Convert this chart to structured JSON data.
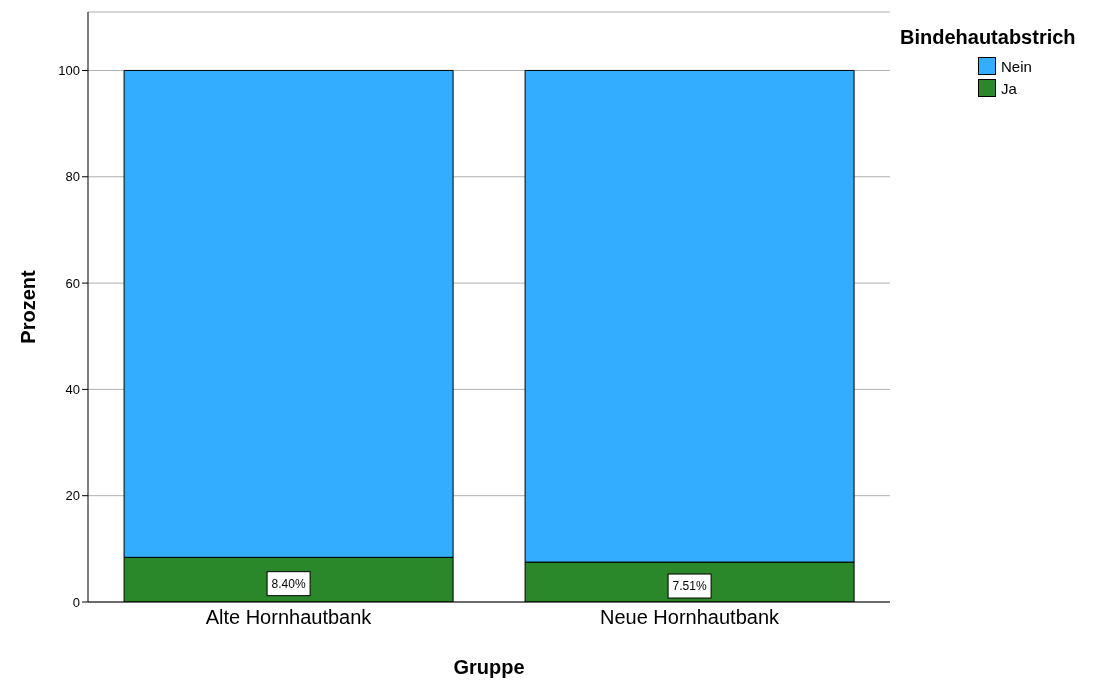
{
  "chart_data": {
    "type": "bar",
    "stacked": true,
    "categories": [
      "Alte Hornhautbank",
      "Neue Hornhautbank"
    ],
    "series": [
      {
        "name": "Ja",
        "color": "#2a882a",
        "values": [
          8.4,
          7.51
        ],
        "value_labels": [
          "8.40%",
          "7.51%"
        ]
      },
      {
        "name": "Nein",
        "color": "#33adff",
        "values": [
          91.6,
          92.49
        ]
      }
    ],
    "xlabel": "Gruppe",
    "ylabel": "Prozent",
    "legend_title": "Bindehautabstrich",
    "ylim": [
      0,
      111
    ],
    "yticks": [
      0,
      20,
      40,
      60,
      80,
      100
    ],
    "grid": "y",
    "legend": "top right"
  }
}
